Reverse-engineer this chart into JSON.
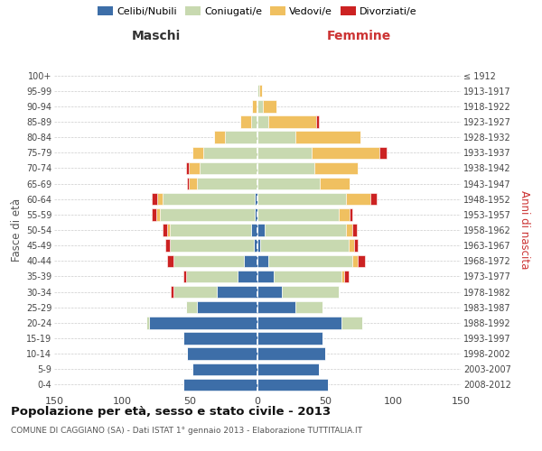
{
  "age_groups": [
    "0-4",
    "5-9",
    "10-14",
    "15-19",
    "20-24",
    "25-29",
    "30-34",
    "35-39",
    "40-44",
    "45-49",
    "50-54",
    "55-59",
    "60-64",
    "65-69",
    "70-74",
    "75-79",
    "80-84",
    "85-89",
    "90-94",
    "95-99",
    "100+"
  ],
  "birth_years": [
    "2008-2012",
    "2003-2007",
    "1998-2002",
    "1993-1997",
    "1988-1992",
    "1983-1987",
    "1978-1982",
    "1973-1977",
    "1968-1972",
    "1963-1967",
    "1958-1962",
    "1953-1957",
    "1948-1952",
    "1943-1947",
    "1938-1942",
    "1933-1937",
    "1928-1932",
    "1923-1927",
    "1918-1922",
    "1913-1917",
    "≤ 1912"
  ],
  "maschi_celibi": [
    55,
    48,
    52,
    55,
    80,
    45,
    30,
    15,
    10,
    3,
    5,
    2,
    2,
    0,
    0,
    0,
    0,
    0,
    0,
    0,
    0
  ],
  "maschi_coniugati": [
    0,
    0,
    0,
    0,
    2,
    8,
    32,
    38,
    52,
    62,
    60,
    70,
    68,
    45,
    43,
    40,
    24,
    5,
    1,
    0,
    0
  ],
  "maschi_vedovi": [
    0,
    0,
    0,
    0,
    0,
    0,
    0,
    0,
    0,
    0,
    2,
    3,
    4,
    6,
    8,
    8,
    8,
    8,
    3,
    0,
    0
  ],
  "maschi_divorziati": [
    0,
    0,
    0,
    0,
    0,
    0,
    2,
    2,
    5,
    3,
    3,
    3,
    4,
    1,
    2,
    0,
    0,
    0,
    0,
    0,
    0
  ],
  "femmine_nubili": [
    52,
    45,
    50,
    48,
    62,
    28,
    18,
    12,
    8,
    2,
    5,
    0,
    0,
    0,
    0,
    0,
    0,
    0,
    0,
    0,
    0
  ],
  "femmine_coniugate": [
    0,
    0,
    0,
    0,
    15,
    20,
    42,
    50,
    62,
    65,
    60,
    60,
    65,
    46,
    42,
    40,
    28,
    8,
    4,
    1,
    0
  ],
  "femmine_vedove": [
    0,
    0,
    0,
    0,
    0,
    0,
    0,
    2,
    4,
    4,
    5,
    8,
    18,
    22,
    32,
    50,
    48,
    35,
    10,
    2,
    0
  ],
  "femmine_divorziate": [
    0,
    0,
    0,
    0,
    0,
    0,
    0,
    3,
    5,
    3,
    3,
    2,
    5,
    0,
    0,
    5,
    0,
    2,
    0,
    0,
    0
  ],
  "color_celibi": "#3d6ea8",
  "color_coniugati": "#c8d9b0",
  "color_vedovi": "#f0c060",
  "color_divorziati": "#cc2222",
  "title": "Popolazione per età, sesso e stato civile - 2013",
  "subtitle": "COMUNE DI CAGGIANO (SA) - Dati ISTAT 1° gennaio 2013 - Elaborazione TUTTITALIA.IT",
  "label_maschi": "Maschi",
  "label_femmine": "Femmine",
  "ylabel_left": "Fasce di età",
  "ylabel_right": "Anni di nascita",
  "xlim": 150,
  "legend_labels": [
    "Celibi/Nubili",
    "Coniugati/e",
    "Vedovi/e",
    "Divorziati/e"
  ],
  "background_color": "#ffffff"
}
